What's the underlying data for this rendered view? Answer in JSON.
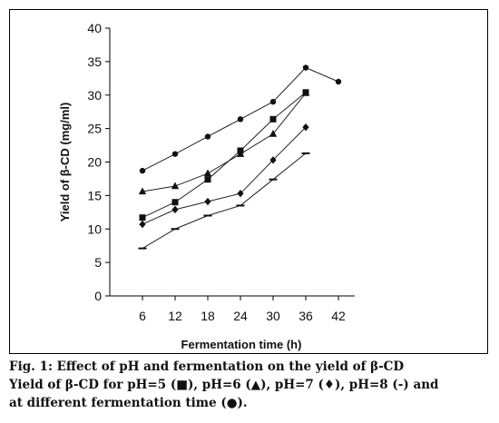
{
  "chart_data": {
    "type": "line",
    "xlabel": "Fermentation time (h)",
    "ylabel": "Yield of β-CD (mg/ml)",
    "xlim": [
      0,
      45
    ],
    "ylim": [
      0,
      40
    ],
    "xticks": [
      6,
      12,
      18,
      24,
      30,
      36,
      42
    ],
    "yticks": [
      0,
      5,
      10,
      15,
      20,
      25,
      30,
      35,
      40
    ],
    "grid": false,
    "series": [
      {
        "marker": "circle",
        "x": [
          6,
          12,
          18,
          24,
          30,
          36,
          42
        ],
        "y": [
          18.7,
          21.2,
          23.8,
          26.4,
          29.0,
          34.1,
          32.0
        ]
      },
      {
        "marker": "square",
        "x": [
          6,
          12,
          18,
          24,
          30,
          36
        ],
        "y": [
          11.7,
          14.0,
          17.4,
          21.7,
          26.4,
          30.4
        ]
      },
      {
        "marker": "triangle",
        "x": [
          6,
          12,
          18,
          24,
          30,
          36
        ],
        "y": [
          15.6,
          16.4,
          18.3,
          21.2,
          24.2,
          30.3
        ]
      },
      {
        "marker": "diamond",
        "x": [
          6,
          12,
          18,
          24,
          30,
          36
        ],
        "y": [
          10.7,
          12.9,
          14.1,
          15.3,
          20.3,
          25.2
        ]
      },
      {
        "marker": "dash",
        "x": [
          6,
          12,
          18,
          24,
          30,
          36
        ],
        "y": [
          7.1,
          10.0,
          12.0,
          13.5,
          17.4,
          21.3
        ]
      }
    ]
  },
  "caption": {
    "line1": "Fig. 1: Effect of pH and fermentation on the yield of β-CD",
    "line2": "Yield of β-CD for pH=5 (■), pH=6 (▲), pH=7 (♦), pH=8 (-) and",
    "line3": "at different fermentation time (●)."
  }
}
